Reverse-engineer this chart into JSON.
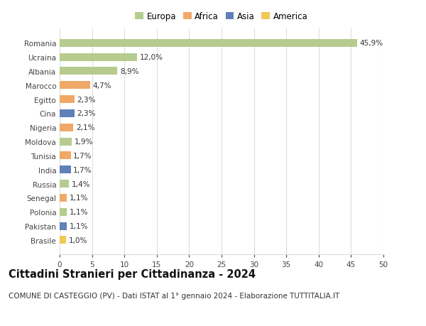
{
  "categories": [
    "Romania",
    "Ucraina",
    "Albania",
    "Marocco",
    "Egitto",
    "Cina",
    "Nigeria",
    "Moldova",
    "Tunisia",
    "India",
    "Russia",
    "Senegal",
    "Polonia",
    "Pakistan",
    "Brasile"
  ],
  "values": [
    45.9,
    12.0,
    8.9,
    4.7,
    2.3,
    2.3,
    2.1,
    1.9,
    1.7,
    1.7,
    1.4,
    1.1,
    1.1,
    1.1,
    1.0
  ],
  "labels": [
    "45,9%",
    "12,0%",
    "8,9%",
    "4,7%",
    "2,3%",
    "2,3%",
    "2,1%",
    "1,9%",
    "1,7%",
    "1,7%",
    "1,4%",
    "1,1%",
    "1,1%",
    "1,1%",
    "1,0%"
  ],
  "colors": [
    "#b5cc8e",
    "#b5cc8e",
    "#b5cc8e",
    "#f0a868",
    "#f0a868",
    "#6080b8",
    "#f0a868",
    "#b5cc8e",
    "#f0a868",
    "#6080b8",
    "#b5cc8e",
    "#f0a868",
    "#b5cc8e",
    "#6080b8",
    "#f0c855"
  ],
  "legend_labels": [
    "Europa",
    "Africa",
    "Asia",
    "America"
  ],
  "legend_colors": [
    "#b5cc8e",
    "#f0a868",
    "#6080b8",
    "#f0c855"
  ],
  "title": "Cittadini Stranieri per Cittadinanza - 2024",
  "subtitle": "COMUNE DI CASTEGGIO (PV) - Dati ISTAT al 1° gennaio 2024 - Elaborazione TUTTITALIA.IT",
  "xlim": [
    0,
    50
  ],
  "xticks": [
    0,
    5,
    10,
    15,
    20,
    25,
    30,
    35,
    40,
    45,
    50
  ],
  "background_color": "#ffffff",
  "grid_color": "#dddddd",
  "bar_height": 0.55,
  "title_fontsize": 10.5,
  "subtitle_fontsize": 7.5,
  "label_fontsize": 7.5,
  "tick_fontsize": 7.5,
  "legend_fontsize": 8.5
}
